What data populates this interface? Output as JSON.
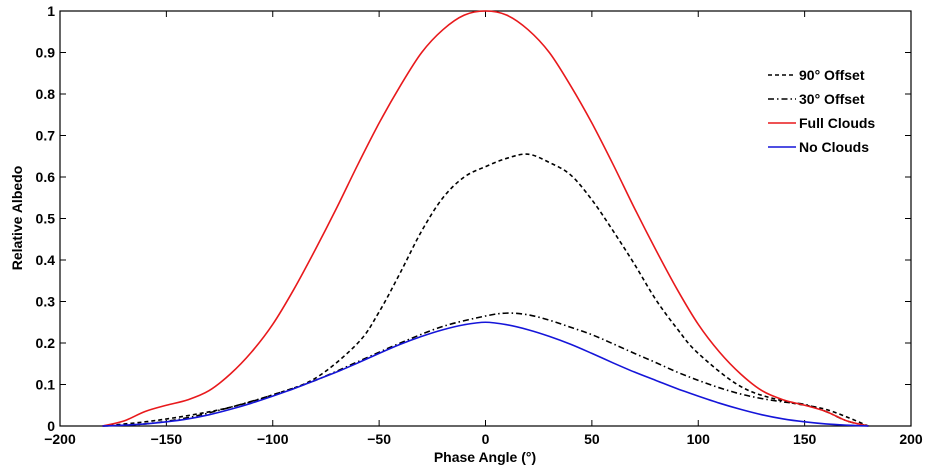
{
  "chart_data": {
    "type": "line",
    "xlabel": "Phase Angle (°)",
    "ylabel": "Relative Albedo",
    "xlim": [
      -200,
      200
    ],
    "ylim": [
      0,
      1
    ],
    "xticks": [
      -200,
      -150,
      -100,
      -50,
      0,
      50,
      100,
      150,
      200
    ],
    "yticks": [
      0,
      0.1,
      0.2,
      0.3,
      0.4,
      0.5,
      0.6,
      0.7,
      0.8,
      0.9,
      1
    ],
    "xtick_labels": [
      "−200",
      "−150",
      "−100",
      "−50",
      "0",
      "50",
      "100",
      "150",
      "200"
    ],
    "ytick_labels": [
      "0",
      "0.1",
      "0.2",
      "0.3",
      "0.4",
      "0.5",
      "0.6",
      "0.7",
      "0.8",
      "0.9",
      "1"
    ],
    "grid": false,
    "legend_position": "top-right",
    "series": [
      {
        "name": "90° Offset",
        "color": "#000000",
        "dash": "dashed",
        "x": [
          -180,
          -160,
          -140,
          -120,
          -100,
          -80,
          -60,
          -50,
          -40,
          -30,
          -20,
          -10,
          0,
          10,
          20,
          30,
          40,
          50,
          60,
          70,
          80,
          90,
          100,
          120,
          140,
          160,
          180
        ],
        "y": [
          0,
          0.01,
          0.025,
          0.045,
          0.075,
          0.115,
          0.2,
          0.275,
          0.37,
          0.47,
          0.55,
          0.6,
          0.625,
          0.645,
          0.655,
          0.635,
          0.605,
          0.545,
          0.47,
          0.39,
          0.305,
          0.235,
          0.175,
          0.095,
          0.06,
          0.04,
          0
        ]
      },
      {
        "name": "30° Offset",
        "color": "#000000",
        "dash": "dashdot",
        "x": [
          -180,
          -160,
          -140,
          -120,
          -100,
          -80,
          -60,
          -40,
          -20,
          0,
          10,
          20,
          30,
          40,
          50,
          60,
          70,
          80,
          90,
          100,
          110,
          120,
          130,
          140,
          150,
          160,
          170,
          180
        ],
        "y": [
          0,
          0.005,
          0.02,
          0.045,
          0.075,
          0.11,
          0.155,
          0.2,
          0.24,
          0.265,
          0.272,
          0.268,
          0.255,
          0.238,
          0.22,
          0.198,
          0.175,
          0.153,
          0.13,
          0.11,
          0.092,
          0.077,
          0.066,
          0.058,
          0.052,
          0.035,
          0.012,
          0
        ]
      },
      {
        "name": "Full Clouds",
        "color": "#e8191c",
        "dash": "solid",
        "x": [
          -180,
          -170,
          -160,
          -150,
          -140,
          -130,
          -120,
          -110,
          -100,
          -90,
          -80,
          -70,
          -60,
          -50,
          -40,
          -30,
          -20,
          -10,
          0,
          10,
          20,
          30,
          40,
          50,
          60,
          70,
          80,
          90,
          100,
          110,
          120,
          130,
          140,
          150,
          160,
          170,
          180
        ],
        "y": [
          0,
          0.012,
          0.035,
          0.05,
          0.063,
          0.085,
          0.125,
          0.178,
          0.245,
          0.33,
          0.425,
          0.525,
          0.63,
          0.73,
          0.82,
          0.9,
          0.955,
          0.99,
          1,
          0.99,
          0.955,
          0.9,
          0.82,
          0.73,
          0.63,
          0.525,
          0.425,
          0.33,
          0.245,
          0.178,
          0.125,
          0.085,
          0.063,
          0.05,
          0.035,
          0.012,
          0
        ]
      },
      {
        "name": "No Clouds",
        "color": "#1515d9",
        "dash": "solid",
        "x": [
          -180,
          -170,
          -160,
          -150,
          -140,
          -130,
          -120,
          -110,
          -100,
          -90,
          -80,
          -70,
          -60,
          -50,
          -40,
          -30,
          -20,
          -10,
          0,
          10,
          20,
          30,
          40,
          50,
          60,
          70,
          80,
          90,
          100,
          110,
          120,
          130,
          140,
          150,
          160,
          170,
          180
        ],
        "y": [
          0,
          0.002,
          0.005,
          0.01,
          0.017,
          0.027,
          0.04,
          0.055,
          0.072,
          0.09,
          0.11,
          0.13,
          0.152,
          0.175,
          0.197,
          0.216,
          0.232,
          0.244,
          0.25,
          0.244,
          0.232,
          0.216,
          0.197,
          0.175,
          0.152,
          0.13,
          0.11,
          0.09,
          0.072,
          0.055,
          0.04,
          0.027,
          0.017,
          0.01,
          0.005,
          0.002,
          0
        ]
      }
    ]
  }
}
